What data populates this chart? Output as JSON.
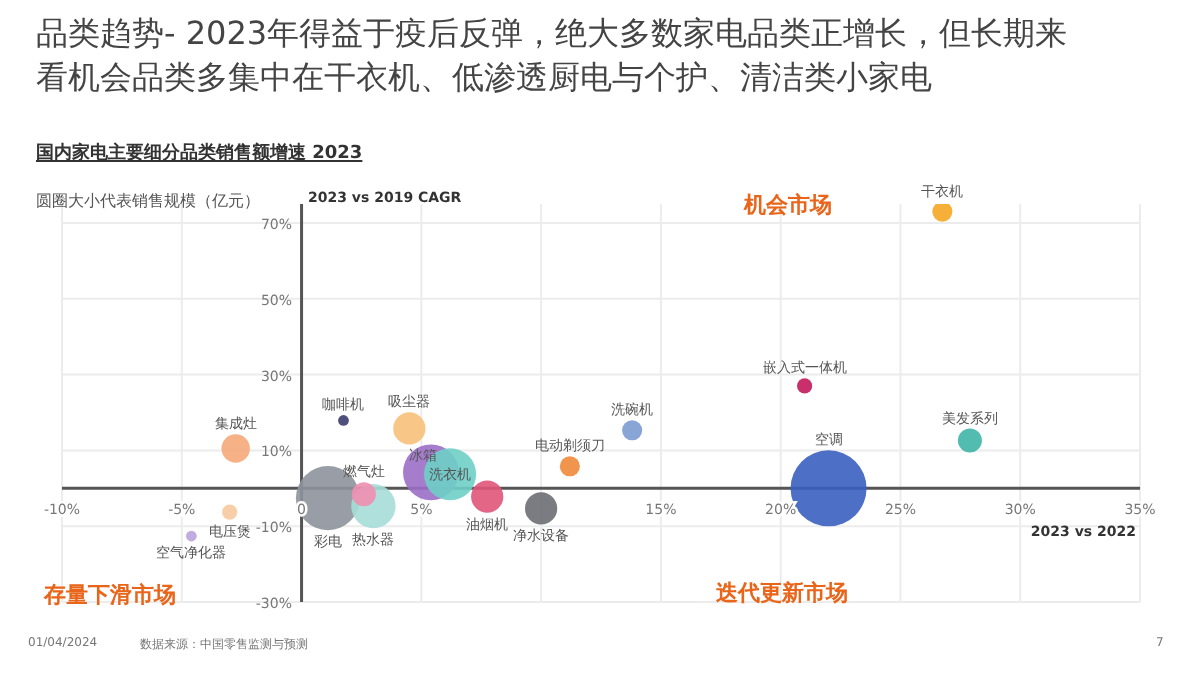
{
  "chart_data": {
    "type": "bubble",
    "title": "品类趋势- 2023年得益于疫后反弹，绝大多数家电品类正增长，但长期来看机会品类多集中在干衣机、低渗透厨电与个护、清洁类小家电",
    "subtitle": "国内家电主要细分品类销售额增速 2023",
    "xlabel": "2023 vs 2022",
    "ylabel": "2023 vs 2019 CAGR",
    "annotations": [
      "圆圈大小代表销售规模（亿元）",
      "机会市场",
      "存量下滑市场",
      "迭代更新市场",
      "01/04/2024",
      "数据来源：中国零售监测与预测",
      "7"
    ],
    "xlim": [
      -10,
      35
    ],
    "xticks": [
      {
        "value": -10,
        "label": "-10%"
      },
      {
        "value": -5,
        "label": "-5%"
      },
      0,
      {
        "value": 5,
        "label": "5%"
      },
      {
        "value": 10,
        "label": null
      },
      {
        "value": 15,
        "label": "15%"
      },
      {
        "value": 20,
        "label": "20%"
      },
      {
        "value": 25,
        "label": "25%"
      },
      {
        "value": 30,
        "label": "30%"
      },
      {
        "value": 35,
        "label": "35%"
      }
    ],
    "ylim": [
      -30,
      75
    ],
    "yticks": [
      {
        "value": -30,
        "label": "-30%"
      },
      {
        "value": -10,
        "label": "-10%"
      },
      {
        "value": 10,
        "label": "10%"
      },
      {
        "value": 30,
        "label": "30%"
      },
      {
        "value": 50,
        "label": "50%"
      },
      {
        "value": 70,
        "label": "70%"
      }
    ],
    "grid": true,
    "series": [
      {
        "name": "干衣机",
        "color": "#f5a623",
        "x": [
          26.75
        ],
        "values": [
          73
        ],
        "sizes": [
          0.07
        ]
      },
      {
        "name": "嵌入式一体机",
        "color": "#c2185b",
        "x": [
          21
        ],
        "values": [
          27
        ],
        "sizes": [
          0.04
        ]
      },
      {
        "name": "洗碗机",
        "color": "#7b9bd1",
        "x": [
          13.8
        ],
        "values": [
          15.3
        ],
        "sizes": [
          0.07
        ]
      },
      {
        "name": "美发系列",
        "color": "#40b5a8",
        "x": [
          27.9
        ],
        "values": [
          12.6
        ],
        "sizes": [
          0.1
        ]
      },
      {
        "name": "空调",
        "color": "#3a5fc0",
        "x": [
          22
        ],
        "values": [
          0
        ],
        "sizes": [
          1
        ]
      },
      {
        "name": "电动剃须刀",
        "color": "#f0883a",
        "x": [
          11.2
        ],
        "values": [
          5.8
        ],
        "sizes": [
          0.07
        ]
      },
      {
        "name": "咖啡机",
        "color": "#3c3c6e",
        "x": [
          1.75
        ],
        "values": [
          17.9
        ],
        "sizes": [
          0.02
        ]
      },
      {
        "name": "吸尘器",
        "color": "#f7c07a",
        "x": [
          4.5
        ],
        "values": [
          15.8
        ],
        "sizes": [
          0.18
        ]
      },
      {
        "name": "集成灶",
        "color": "#f5a97a",
        "x": [
          -2.75
        ],
        "values": [
          10.5
        ],
        "sizes": [
          0.14
        ]
      },
      {
        "name": "冰箱",
        "color": "#9b6fc7",
        "x": [
          5.4
        ],
        "values": [
          4.2
        ],
        "sizes": [
          0.54
        ]
      },
      {
        "name": "洗衣机",
        "color": "#6ecfc6",
        "x": [
          6.2
        ],
        "values": [
          3.7
        ],
        "sizes": [
          0.47
        ]
      },
      {
        "name": "彩电",
        "color": "#8e939c",
        "x": [
          1.1
        ],
        "values": [
          -2.6
        ],
        "sizes": [
          0.71
        ]
      },
      {
        "name": "热水器",
        "color": "#a6ddd8",
        "x": [
          3
        ],
        "values": [
          -4.7
        ],
        "sizes": [
          0.34
        ]
      },
      {
        "name": "燃气灶",
        "color": "#f08fb0",
        "x": [
          2.6
        ],
        "values": [
          -1.6
        ],
        "sizes": [
          0.1
        ]
      },
      {
        "name": "油烟机",
        "color": "#e0557a",
        "x": [
          7.75
        ],
        "values": [
          -2.2
        ],
        "sizes": [
          0.18
        ]
      },
      {
        "name": "净水设备",
        "color": "#6b6e73",
        "x": [
          10
        ],
        "values": [
          -5.3
        ],
        "sizes": [
          0.18
        ]
      },
      {
        "name": "电压煲",
        "color": "#f7c9a0",
        "x": [
          -3
        ],
        "values": [
          -6.3
        ],
        "sizes": [
          0.04
        ]
      },
      {
        "name": "空气净化器",
        "color": "#b9a3dc",
        "x": [
          -4.6
        ],
        "values": [
          -12.6
        ],
        "sizes": [
          0.02
        ]
      }
    ]
  }
}
